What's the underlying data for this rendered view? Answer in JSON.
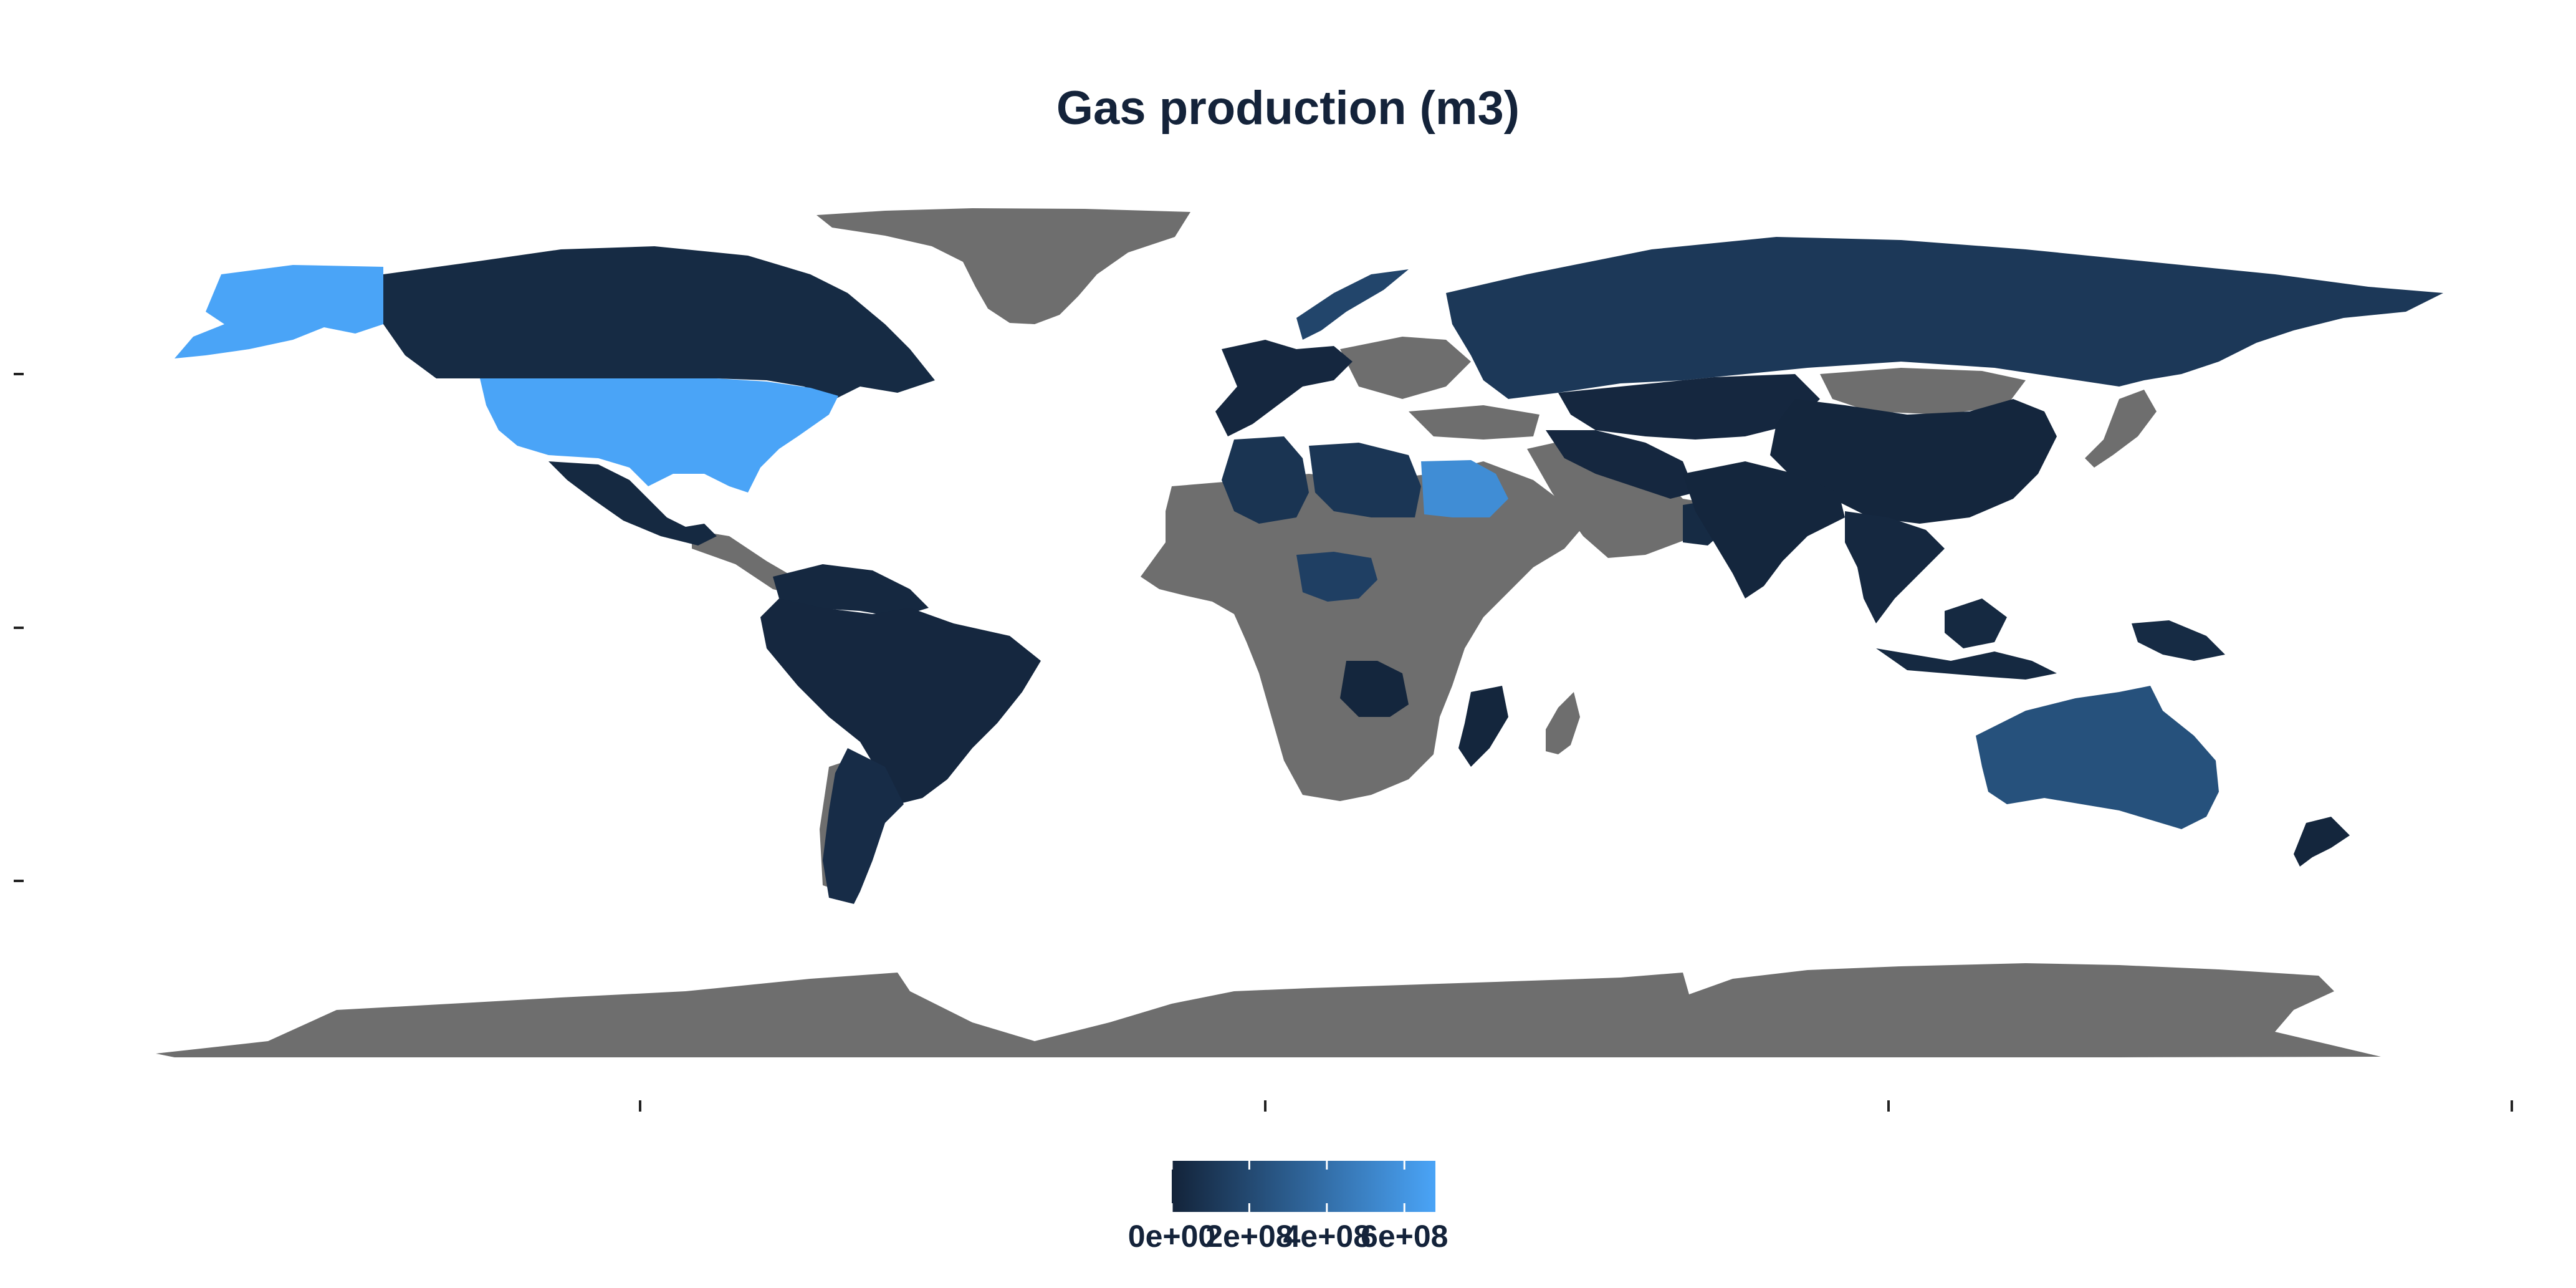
{
  "title": "Gas production (m3)",
  "colors": {
    "low": "#132339",
    "high": "#4aa4f7",
    "missing": "#6e6e6e",
    "background": "#ffffff",
    "title": "#14233a"
  },
  "legend": {
    "title": "",
    "ticks": [
      "0e+00",
      "2e+08",
      "4e+08",
      "6e+08"
    ],
    "tick_values": [
      0,
      200000000,
      400000000,
      600000000
    ],
    "max": 680000000
  },
  "countries": [
    {
      "name": "USA",
      "value": 680000000
    },
    {
      "name": "Alaska",
      "value": 680000000
    },
    {
      "name": "Egypt",
      "value": 560000000
    },
    {
      "name": "Australia",
      "value": 240000000
    },
    {
      "name": "Norway",
      "value": 180000000
    },
    {
      "name": "Nigeria",
      "value": 150000000
    },
    {
      "name": "Russia",
      "value": 110000000
    },
    {
      "name": "Libya",
      "value": 100000000
    },
    {
      "name": "Algeria",
      "value": 90000000
    },
    {
      "name": "Canada",
      "value": 40000000
    },
    {
      "name": "Mexico",
      "value": 30000000
    },
    {
      "name": "Argentina",
      "value": 50000000
    },
    {
      "name": "Brazil",
      "value": 20000000
    },
    {
      "name": "South America north",
      "value": 25000000
    },
    {
      "name": "China",
      "value": 15000000
    },
    {
      "name": "Central Asia",
      "value": 20000000
    },
    {
      "name": "India",
      "value": 15000000
    },
    {
      "name": "Southeast Asia",
      "value": 25000000
    },
    {
      "name": "Indonesia",
      "value": 30000000
    },
    {
      "name": "Papua New Guinea",
      "value": 40000000
    },
    {
      "name": "New Zealand",
      "value": 15000000
    },
    {
      "name": "Western Europe",
      "value": 20000000
    },
    {
      "name": "Angola",
      "value": 15000000
    },
    {
      "name": "Mozambique",
      "value": 15000000
    },
    {
      "name": "Iran",
      "value": 20000000
    },
    {
      "name": "Oman",
      "value": 40000000
    },
    {
      "name": "Greenland",
      "value": null
    },
    {
      "name": "Antarctica",
      "value": null
    },
    {
      "name": "Sub-Saharan Africa",
      "value": null
    },
    {
      "name": "Arabian Peninsula",
      "value": null
    }
  ]
}
